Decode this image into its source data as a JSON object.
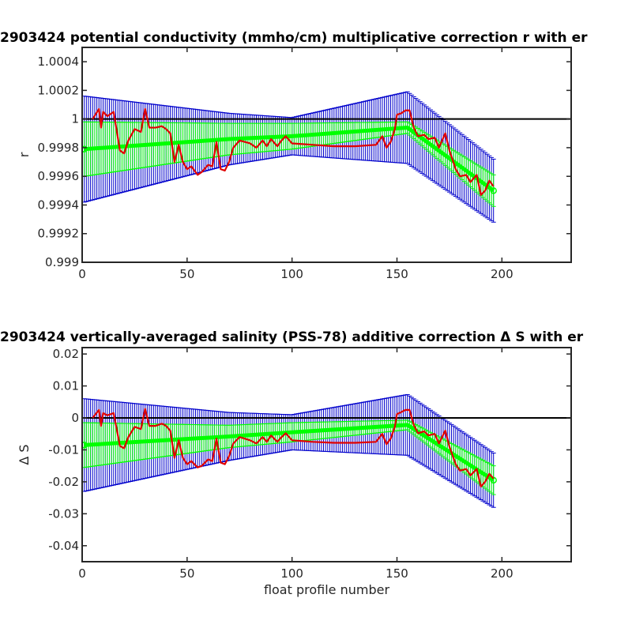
{
  "chart_data": [
    {
      "type": "line",
      "title": "2903424 potential conductivity (mmho/cm) multiplicative correction r with er",
      "xlabel": "",
      "ylabel": "r",
      "xlim": [
        0,
        233
      ],
      "ylim": [
        0.999,
        1.0005
      ],
      "xticks": [
        0,
        50,
        100,
        150,
        200
      ],
      "xtick_labels": [
        "0",
        "50",
        "100",
        "150",
        "200"
      ],
      "yticks": [
        0.999,
        0.9992,
        0.9994,
        0.9996,
        0.9998,
        1.0,
        1.0002,
        1.0004
      ],
      "ytick_labels": [
        "0.999",
        "0.9992",
        "0.9994",
        "0.9996",
        "0.9998",
        "1",
        "1.0002",
        "1.0004"
      ],
      "reference_line": 1.0,
      "colors": {
        "fit": "#00ff00",
        "fit_error": "#0000cc",
        "raw": "#e00000",
        "reference": "#000000"
      },
      "series": [
        {
          "role": "fit_with_error",
          "x": [
            1,
            70,
            100,
            155,
            196
          ],
          "y": [
            0.99979,
            0.99986,
            0.99988,
            0.99994,
            0.9995
          ],
          "inner_err": [
            0.00019,
            0.00011,
            9e-05,
            4e-05,
            0.00011
          ],
          "outer_err": [
            0.00037,
            0.00018,
            0.00013,
            0.00025,
            0.00022
          ]
        },
        {
          "role": "raw",
          "x": [
            5,
            8,
            9,
            10,
            12,
            15,
            18,
            20,
            22,
            25,
            28,
            30,
            32,
            35,
            38,
            40,
            42,
            44,
            46,
            48,
            50,
            52,
            55,
            57,
            60,
            62,
            64,
            66,
            68,
            70,
            72,
            75,
            80,
            83,
            86,
            88,
            90,
            93,
            95,
            97,
            100,
            110,
            120,
            130,
            140,
            143,
            145,
            147,
            149,
            150,
            152,
            154,
            156,
            158,
            160,
            163,
            165,
            168,
            170,
            173,
            175,
            178,
            180,
            183,
            185,
            188,
            190,
            192,
            194,
            196
          ],
          "y": [
            1.0,
            1.00007,
            0.99994,
            1.00005,
            1.00002,
            1.00005,
            0.99978,
            0.99976,
            0.99985,
            0.99993,
            0.99991,
            1.00007,
            0.99994,
            0.99994,
            0.99995,
            0.99993,
            0.9999,
            0.9997,
            0.99982,
            0.9997,
            0.99965,
            0.99967,
            0.99961,
            0.99963,
            0.99968,
            0.99967,
            0.99984,
            0.99965,
            0.99964,
            0.9997,
            0.9998,
            0.99985,
            0.99983,
            0.9998,
            0.99985,
            0.99981,
            0.99986,
            0.99981,
            0.99985,
            0.99988,
            0.99983,
            0.99982,
            0.99981,
            0.99981,
            0.99982,
            0.99988,
            0.9998,
            0.99984,
            0.99993,
            1.00003,
            1.00004,
            1.00006,
            1.00006,
            0.99994,
            0.99988,
            0.99989,
            0.99986,
            0.99987,
            0.9998,
            0.9999,
            0.99978,
            0.99965,
            0.9996,
            0.99961,
            0.99956,
            0.99961,
            0.99947,
            0.9995,
            0.99957,
            0.99953
          ]
        }
      ]
    },
    {
      "type": "line",
      "title": "2903424 vertically-averaged salinity (PSS-78) additive correction Δ S with er",
      "xlabel": "float profile number",
      "ylabel": "Δ S",
      "xlim": [
        0,
        233
      ],
      "ylim": [
        -0.045,
        0.022
      ],
      "xticks": [
        0,
        50,
        100,
        150,
        200
      ],
      "xtick_labels": [
        "0",
        "50",
        "100",
        "150",
        "200"
      ],
      "yticks": [
        -0.04,
        -0.03,
        -0.02,
        -0.01,
        0,
        0.01,
        0.02
      ],
      "ytick_labels": [
        "-0.04",
        "-0.03",
        "-0.02",
        "-0.01",
        "0",
        "0.01",
        "0.02"
      ],
      "reference_line": 0,
      "colors": {
        "fit": "#00ff00",
        "fit_error": "#0000cc",
        "raw": "#e00000",
        "reference": "#000000"
      },
      "series": [
        {
          "role": "fit_with_error",
          "x": [
            1,
            70,
            100,
            155,
            196
          ],
          "y": [
            -0.0085,
            -0.0058,
            -0.0045,
            -0.0022,
            -0.0195
          ],
          "inner_err": [
            0.007,
            0.0035,
            0.003,
            0.0015,
            0.0045
          ],
          "outer_err": [
            0.0145,
            0.0075,
            0.0055,
            0.0095,
            0.0085
          ]
        },
        {
          "role": "raw",
          "x": [
            5,
            8,
            9,
            10,
            12,
            15,
            18,
            20,
            22,
            25,
            28,
            30,
            32,
            35,
            38,
            40,
            42,
            44,
            46,
            48,
            50,
            52,
            55,
            57,
            60,
            62,
            64,
            66,
            68,
            70,
            72,
            75,
            80,
            83,
            86,
            88,
            90,
            93,
            95,
            97,
            100,
            110,
            120,
            130,
            140,
            143,
            145,
            147,
            149,
            150,
            152,
            154,
            156,
            158,
            160,
            163,
            165,
            168,
            170,
            173,
            175,
            178,
            180,
            183,
            185,
            188,
            190,
            192,
            194,
            196
          ],
          "y": [
            0.0,
            0.0025,
            -0.0025,
            0.0015,
            0.0008,
            0.0015,
            -0.0088,
            -0.0095,
            -0.006,
            -0.0028,
            -0.0035,
            0.0028,
            -0.0025,
            -0.0025,
            -0.0018,
            -0.0025,
            -0.004,
            -0.0125,
            -0.007,
            -0.0125,
            -0.0145,
            -0.0135,
            -0.0155,
            -0.015,
            -0.013,
            -0.0135,
            -0.0065,
            -0.014,
            -0.0145,
            -0.012,
            -0.008,
            -0.006,
            -0.007,
            -0.008,
            -0.006,
            -0.0075,
            -0.0055,
            -0.0075,
            -0.006,
            -0.0048,
            -0.007,
            -0.0075,
            -0.0078,
            -0.0078,
            -0.0075,
            -0.005,
            -0.0082,
            -0.0065,
            -0.0028,
            0.0012,
            0.0018,
            0.0025,
            0.0025,
            -0.0022,
            -0.0048,
            -0.0042,
            -0.0055,
            -0.005,
            -0.008,
            -0.004,
            -0.009,
            -0.0145,
            -0.0165,
            -0.016,
            -0.018,
            -0.016,
            -0.0215,
            -0.02,
            -0.0175,
            -0.019
          ]
        }
      ]
    }
  ]
}
